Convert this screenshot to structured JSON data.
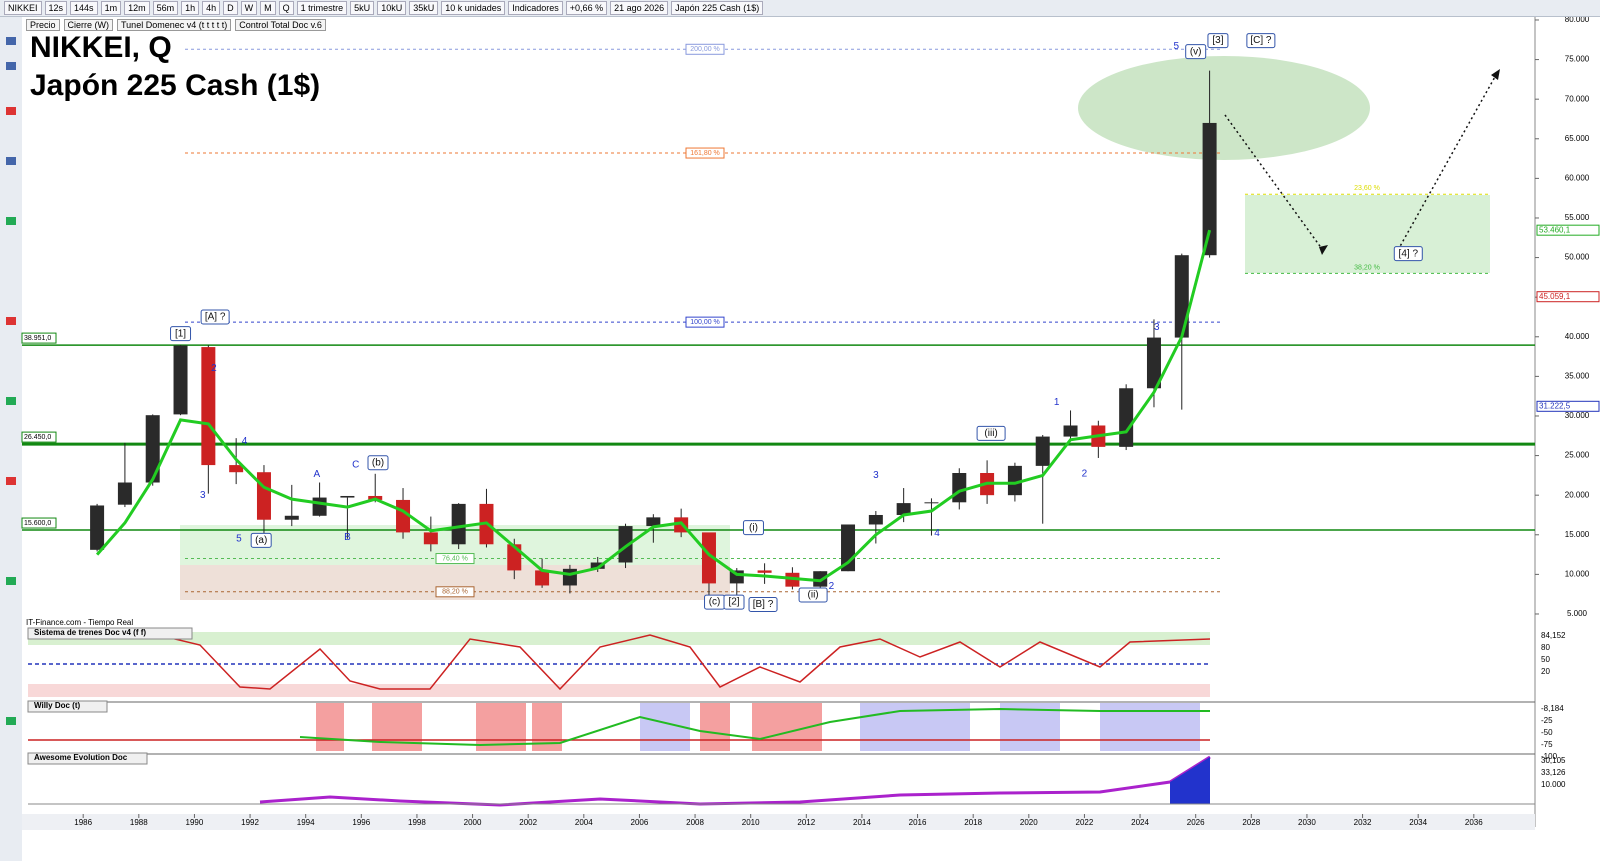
{
  "toolbar": {
    "items": [
      "NIKKEI",
      "12s",
      "144s",
      "1m",
      "12m",
      "56m",
      "1h",
      "4h",
      "D",
      "W",
      "M",
      "Q",
      "1 trimestre",
      "5kU",
      "10kU",
      "35kU",
      "10 k unidades",
      "Indicadores",
      "+0,66 %",
      "21 ago 2026",
      "Japón 225 Cash (1$)"
    ],
    "legend": [
      "Precio",
      "Cierre (W)",
      "Tunel Domenec v4 (t t t t t)",
      "Control Total Doc v.6"
    ]
  },
  "source": "IT-Finance.com - Tiempo Real",
  "chart_data": {
    "type": "candlestick",
    "title": "NIKKEI, Q",
    "subtitle": "Japón 225 Cash (1$)",
    "x": [
      1986,
      1987,
      1988,
      1989,
      1990,
      1991,
      1992,
      1993,
      1994,
      1995,
      1996,
      1997,
      1998,
      1999,
      2000,
      2001,
      2002,
      2003,
      2004,
      2005,
      2006,
      2007,
      2008,
      2009,
      2010,
      2011,
      2012,
      2013,
      2014,
      2015,
      2016,
      2017,
      2018,
      2019,
      2020,
      2021,
      2022,
      2023,
      2024,
      2025,
      2026
    ],
    "open": [
      13100,
      18800,
      21600,
      30200,
      38700,
      23800,
      22900,
      16900,
      17400,
      19700,
      19900,
      19400,
      15300,
      13800,
      18900,
      13800,
      10500,
      8600,
      10700,
      11500,
      16100,
      17200,
      15300,
      8860,
      10500,
      10200,
      8450,
      10400,
      16300,
      17500,
      19000,
      19100,
      22800,
      20000,
      23700,
      27400,
      28800,
      26100,
      33500,
      39900,
      50300
    ],
    "high": [
      18900,
      26600,
      30200,
      38950,
      38950,
      27200,
      23800,
      21300,
      21600,
      19700,
      22700,
      20900,
      17300,
      19000,
      20800,
      14500,
      12000,
      11200,
      12200,
      16400,
      17600,
      18300,
      15200,
      10800,
      11400,
      10900,
      10400,
      16300,
      18000,
      20900,
      19600,
      23400,
      24400,
      24100,
      27600,
      30700,
      29400,
      34000,
      42200,
      50500,
      73600
    ],
    "low": [
      12900,
      18500,
      21200,
      30100,
      20200,
      21400,
      14300,
      16100,
      17300,
      14500,
      19100,
      14500,
      12900,
      13200,
      13400,
      9400,
      8300,
      7600,
      10300,
      10800,
      14000,
      14700,
      6990,
      7050,
      8800,
      8100,
      8200,
      10400,
      13900,
      16600,
      14900,
      18200,
      18900,
      19200,
      16400,
      26900,
      24700,
      25700,
      31100,
      30800,
      50000
    ],
    "close": [
      18700,
      21600,
      30100,
      38900,
      23800,
      22900,
      16900,
      17400,
      19700,
      19900,
      19400,
      15300,
      13800,
      18900,
      13800,
      10500,
      8600,
      10700,
      11500,
      16100,
      17200,
      15300,
      8860,
      10500,
      10200,
      8450,
      10400,
      16300,
      17500,
      19000,
      19100,
      22800,
      20000,
      23700,
      27400,
      28800,
      26100,
      33500,
      39900,
      50300,
      67000
    ],
    "up_color": "#2a2a2a",
    "down_color": "#cc2222",
    "series": [
      {
        "color": "#22cc22",
        "values": [
          12500,
          16500,
          22000,
          29500,
          29000,
          24500,
          21000,
          19500,
          19000,
          18500,
          19500,
          18000,
          15500,
          16000,
          16500,
          13500,
          10500,
          10000,
          10800,
          13500,
          16000,
          16500,
          12500,
          10000,
          9800,
          9500,
          9200,
          11500,
          15000,
          17500,
          18000,
          20500,
          21500,
          21500,
          22500,
          27000,
          27500,
          28000,
          33000,
          40000,
          53460
        ]
      }
    ],
    "xlim": [
      1983.8,
      2038.2
    ],
    "xticks": [
      1986,
      1988,
      1990,
      1992,
      1994,
      1996,
      1998,
      2000,
      2002,
      2004,
      2006,
      2008,
      2010,
      2012,
      2014,
      2016,
      2018,
      2020,
      2022,
      2024,
      2026,
      2028,
      2030,
      2032,
      2034,
      2036
    ],
    "ylim": [
      4240,
      80250
    ],
    "yticks": [
      {
        "value": 10000,
        "label": "10.000"
      },
      {
        "value": 15000,
        "label": "15.000"
      },
      {
        "value": 20000,
        "label": "20.000"
      },
      {
        "value": 25000,
        "label": "25.000"
      },
      {
        "value": 30000,
        "label": "30.000"
      },
      {
        "value": 35000,
        "label": "35.000"
      },
      {
        "value": 40000,
        "label": "40.000"
      },
      {
        "value": 45000,
        "label": "45.000"
      },
      {
        "value": 50000,
        "label": "50.000"
      },
      {
        "value": 55000,
        "label": "55.000"
      },
      {
        "value": 60000,
        "label": "60.000"
      },
      {
        "value": 65000,
        "label": "65.000"
      },
      {
        "value": 70000,
        "label": "70.000"
      },
      {
        "value": 75000,
        "label": "75.000"
      },
      {
        "value": 80000,
        "label": "80.000"
      },
      {
        "value": 5000,
        "label": "5.000"
      }
    ],
    "levels": [
      {
        "price": 38951,
        "label": "38.951,0"
      },
      {
        "price": 26450,
        "label": "26.450,0"
      },
      {
        "price": 15600,
        "label": "15.600,0"
      }
    ],
    "fib": [
      {
        "price": 76300,
        "label": "200,00 %",
        "color": "#8899dd"
      },
      {
        "price": 63200,
        "label": "161,80 %",
        "color": "#ee7733"
      },
      {
        "price": 41850,
        "label": "100,00 %",
        "color": "#3344cc"
      },
      {
        "price": 12000,
        "label": "76,40 %",
        "color": "#55bb55"
      },
      {
        "price": 7800,
        "label": "88,20 %",
        "color": "#aa6633"
      }
    ],
    "target_fib": [
      {
        "price": 58000,
        "label": "23,60 %",
        "color": "#dddd00"
      },
      {
        "price": 48000,
        "label": "38,20 %",
        "color": "#44bb44"
      }
    ],
    "price_labels": [
      {
        "value": 53460.1,
        "label": "53.460,1",
        "color": "#22aa22"
      },
      {
        "value": 45059.1,
        "label": "45.059,1",
        "color": "#cc2222"
      },
      {
        "value": 31222.5,
        "label": "31.222,5",
        "color": "#2233bb"
      }
    ],
    "annotations": [
      {
        "text": "[1]",
        "x": 1989.5,
        "price": 40400
      },
      {
        "text": "[A] ?",
        "x": 1990.6,
        "price": 42500
      },
      {
        "text": "2",
        "x": 1990.7,
        "price": 36000
      },
      {
        "text": "3",
        "x": 1990.3,
        "price": 20000
      },
      {
        "text": "4",
        "x": 1991.8,
        "price": 26800
      },
      {
        "text": "5",
        "x": 1991.6,
        "price": 14500
      },
      {
        "text": "(a)",
        "x": 1992.4,
        "price": 14300
      },
      {
        "text": "A",
        "x": 1994.4,
        "price": 22600
      },
      {
        "text": "B",
        "x": 1995.5,
        "price": 14700
      },
      {
        "text": "C",
        "x": 1995.8,
        "price": 23800
      },
      {
        "text": "(b)",
        "x": 1996.6,
        "price": 24100
      },
      {
        "text": "(c)",
        "x": 2008.7,
        "price": 6500
      },
      {
        "text": "[2]",
        "x": 2009.4,
        "price": 6500
      },
      {
        "text": "[B] ?",
        "x": 2010.3,
        "price": 6200
      },
      {
        "text": "(i)",
        "x": 2010.1,
        "price": 15900
      },
      {
        "text": "(ii)",
        "x": 2012.1,
        "price": 7400
      },
      {
        "text": "2",
        "x": 2012.9,
        "price": 8500
      },
      {
        "text": "3",
        "x": 2014.5,
        "price": 22500
      },
      {
        "text": "4",
        "x": 2016.7,
        "price": 15200
      },
      {
        "text": "(iii)",
        "x": 2018.5,
        "price": 27800
      },
      {
        "text": "1",
        "x": 2021,
        "price": 31700
      },
      {
        "text": "2",
        "x": 2022,
        "price": 22700
      },
      {
        "text": "3",
        "x": 2024.6,
        "price": 41200
      },
      {
        "text": "5",
        "x": 2025.3,
        "price": 76700
      },
      {
        "text": "(v)",
        "x": 2026,
        "price": 76000
      },
      {
        "text": "[3]",
        "x": 2026.8,
        "price": 77400
      },
      {
        "text": "[C] ?",
        "x": 2028.2,
        "price": 77400
      },
      {
        "text": "[4] ?",
        "x": 2033.5,
        "price": 50500
      }
    ]
  },
  "panels": [
    {
      "title": "Sistema de trenes Doc v4 (f f)",
      "labels": [
        "84,152",
        "80",
        "50",
        "20"
      ]
    },
    {
      "title": "Willy Doc (t)",
      "labels": [
        "-8,184",
        "-25",
        "-50",
        "-75",
        "-100"
      ]
    },
    {
      "title": "Awesome Evolution Doc",
      "labels": [
        "30,105",
        "33,126",
        "10.000"
      ]
    }
  ]
}
